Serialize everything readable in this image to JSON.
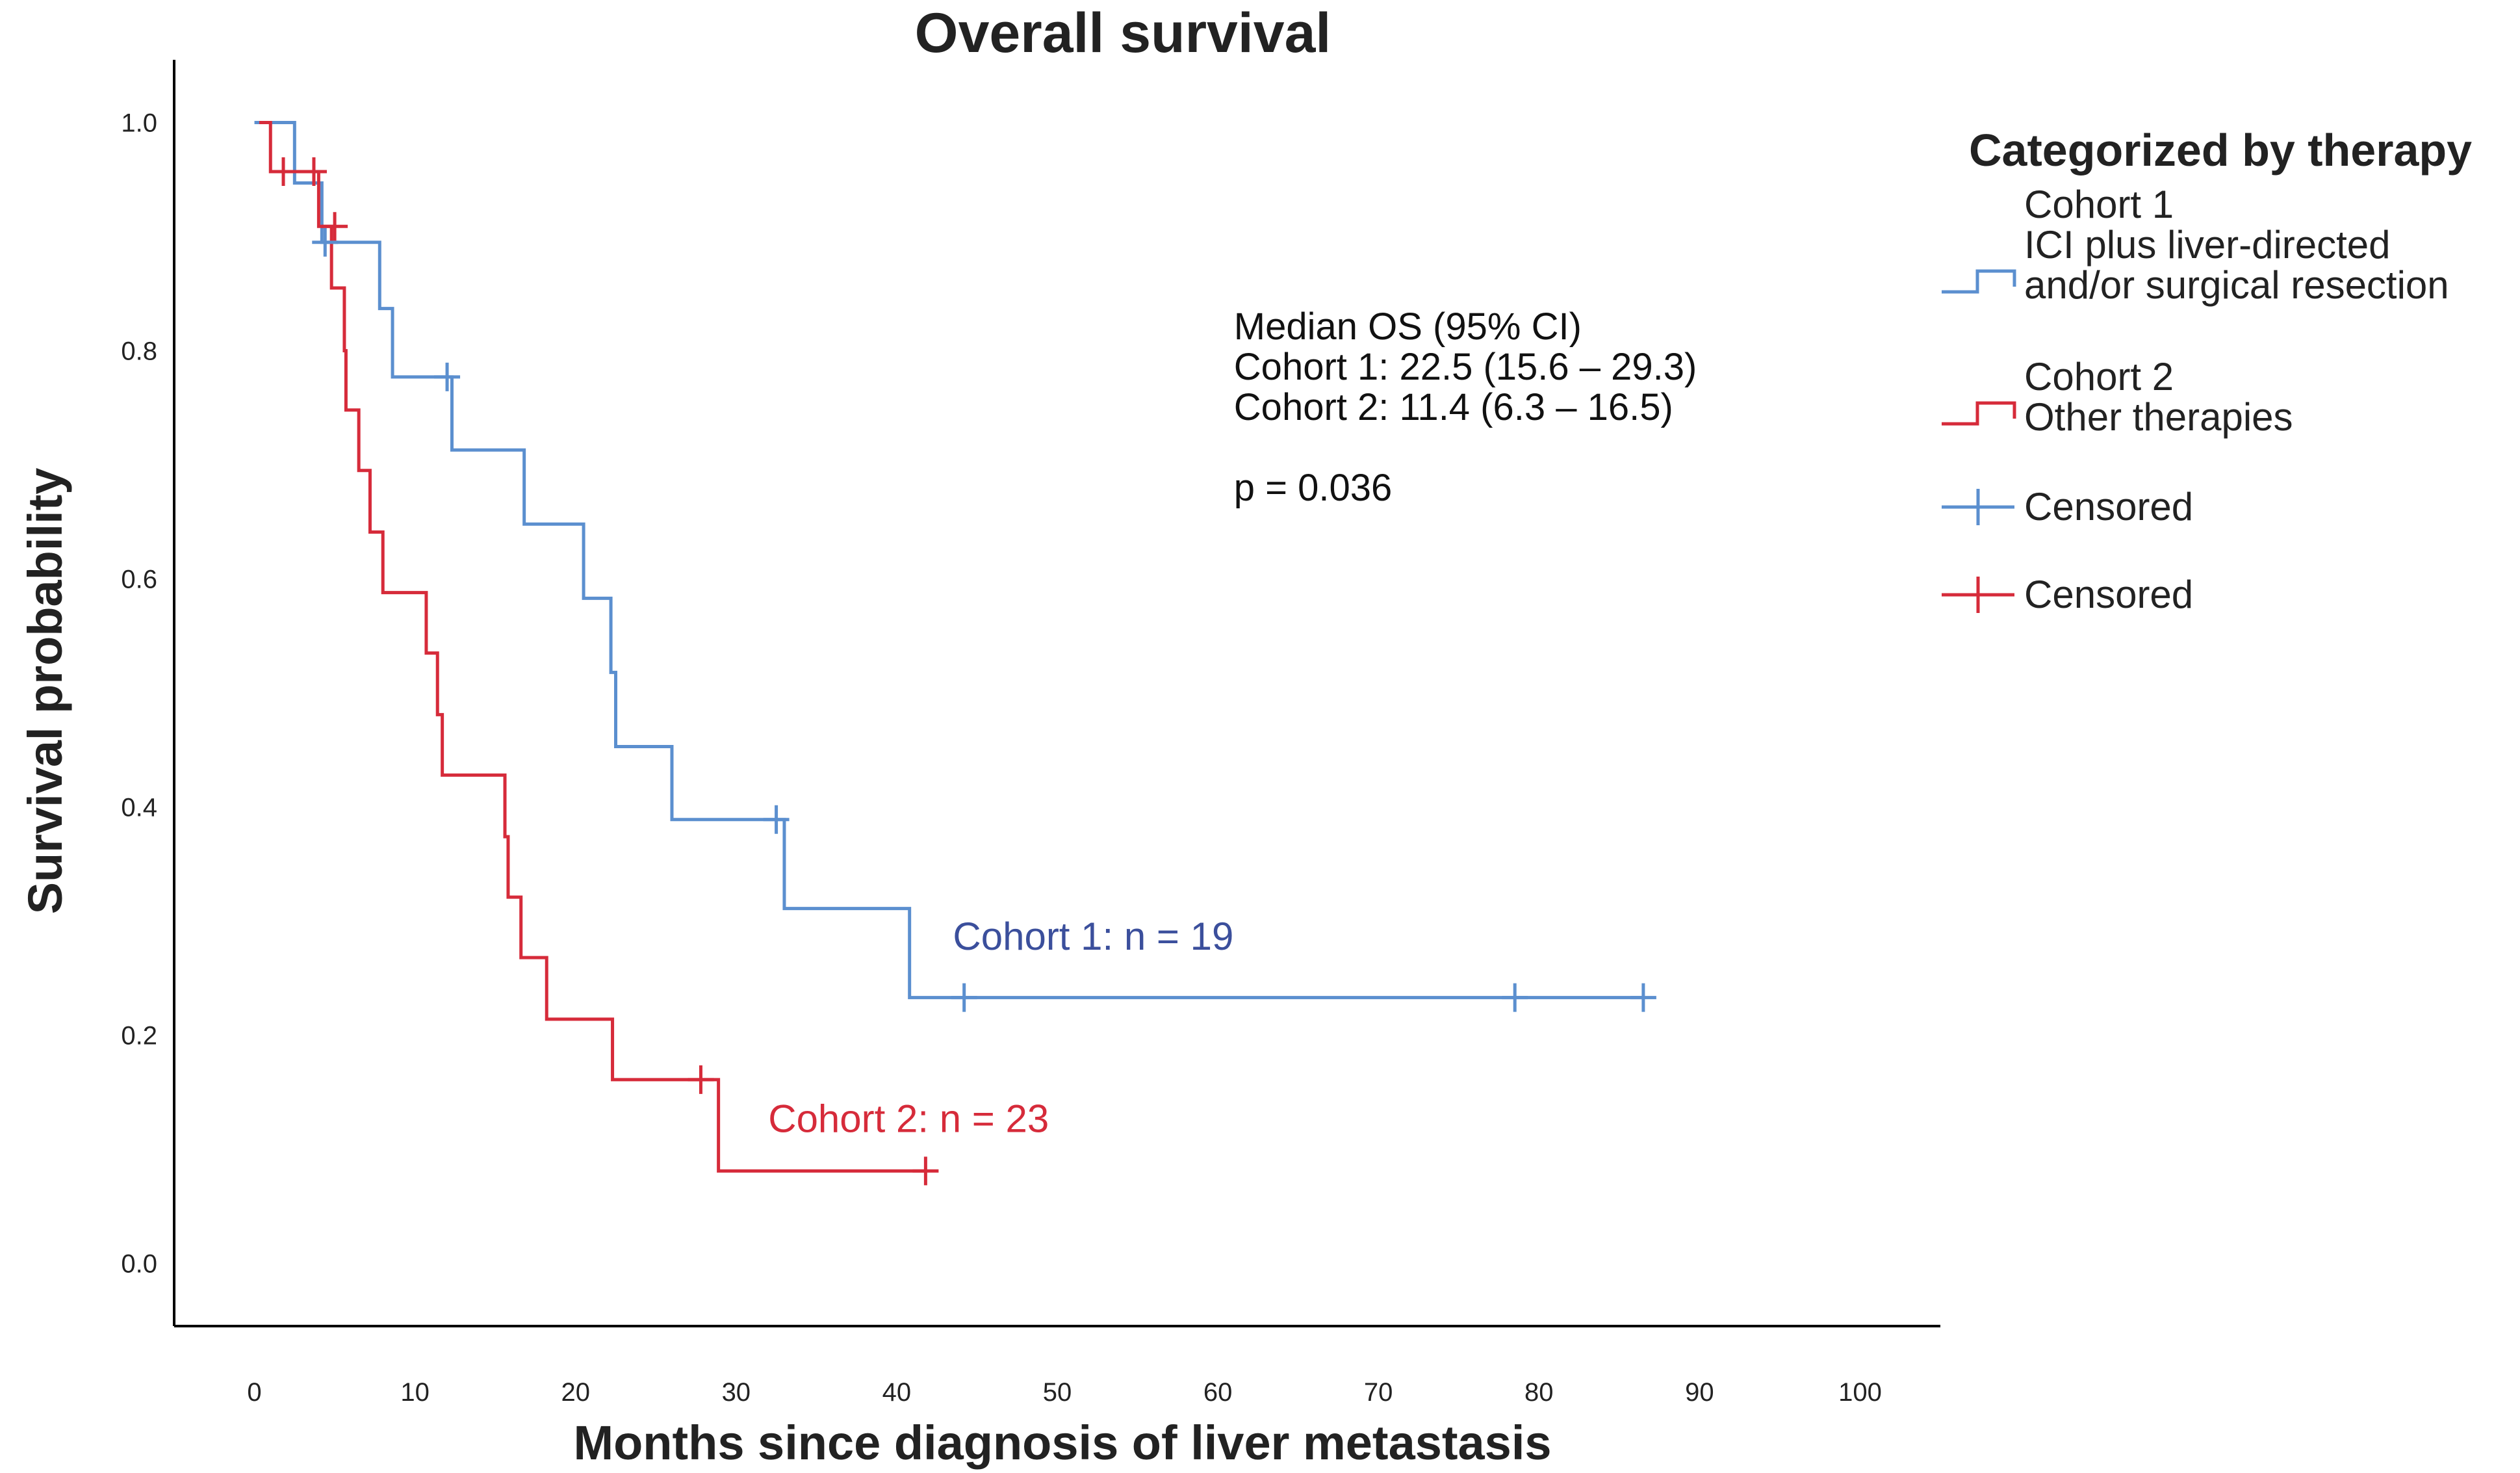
{
  "chart_data": {
    "type": "line",
    "subtype": "kaplan-meier",
    "title": "Overall survival",
    "xlabel": "Months since diagnosis of liver metastasis",
    "ylabel": "Survival probability",
    "xlim": [
      -5,
      105
    ],
    "ylim": [
      -0.055,
      1.055
    ],
    "xticks": [
      0,
      10,
      20,
      30,
      40,
      50,
      60,
      70,
      80,
      90,
      100
    ],
    "xtick_labels": [
      "0",
      "10",
      "20",
      "30",
      "40",
      "50",
      "60",
      "70",
      "80",
      "90",
      "100"
    ],
    "yticks": [
      0.0,
      0.2,
      0.4,
      0.6,
      0.8,
      1.0
    ],
    "ytick_labels": [
      "0.0",
      "0.2",
      "0.4",
      "0.6",
      "0.8",
      "1.0"
    ],
    "legend": {
      "title": "Categorized by therapy",
      "position": "right",
      "entries": [
        {
          "series": 0,
          "kind": "step",
          "lines": [
            "Cohort 1",
            "ICI plus liver-directed",
            "and/or surgical resection"
          ]
        },
        {
          "series": 1,
          "kind": "step",
          "lines": [
            "Cohort 2",
            "Other therapies"
          ]
        },
        {
          "series": 0,
          "kind": "censor",
          "lines": [
            "Censored"
          ]
        },
        {
          "series": 1,
          "kind": "censor",
          "lines": [
            "Censored"
          ]
        }
      ]
    },
    "annotation": {
      "lines": [
        "Median OS (95% CI)",
        "Cohort 1: 22.5 (15.6 – 29.3)",
        "Cohort 2: 11.4 (6.3 – 16.5)",
        "",
        "p = 0.036"
      ],
      "anchor": [
        61,
        0.81
      ]
    },
    "series": [
      {
        "name": "Cohort 1",
        "color": "#5b8fcf",
        "n_label": "Cohort 1: n = 19",
        "n_label_color": "#3b4f9c",
        "n_label_anchor": [
          43.5,
          0.275
        ],
        "steps": [
          [
            0,
            1.0
          ],
          [
            2.5,
            0.947
          ],
          [
            4.2,
            0.895
          ],
          [
            7.8,
            0.837
          ],
          [
            8.6,
            0.777
          ],
          [
            12.3,
            0.713
          ],
          [
            16.8,
            0.648
          ],
          [
            20.5,
            0.583
          ],
          [
            22.2,
            0.518
          ],
          [
            22.5,
            0.453
          ],
          [
            26.0,
            0.389
          ],
          [
            33.0,
            0.311
          ],
          [
            40.8,
            0.233
          ],
          [
            86.5,
            0.233
          ]
        ],
        "censored": [
          [
            4.4,
            0.895
          ],
          [
            12.0,
            0.777
          ],
          [
            32.5,
            0.389
          ],
          [
            44.2,
            0.233
          ],
          [
            78.5,
            0.233
          ],
          [
            86.5,
            0.233
          ]
        ]
      },
      {
        "name": "Cohort 2",
        "color": "#d62b3a",
        "n_label": "Cohort 2: n = 23",
        "n_label_color": "#d62b3a",
        "n_label_anchor": [
          32.0,
          0.115
        ],
        "steps": [
          [
            0.3,
            1.0
          ],
          [
            1.0,
            0.957
          ],
          [
            4.0,
            0.909
          ],
          [
            4.8,
            0.855
          ],
          [
            5.6,
            0.8
          ],
          [
            5.7,
            0.748
          ],
          [
            6.5,
            0.695
          ],
          [
            7.2,
            0.641
          ],
          [
            8.0,
            0.588
          ],
          [
            10.7,
            0.535
          ],
          [
            11.4,
            0.481
          ],
          [
            11.7,
            0.428
          ],
          [
            15.6,
            0.374
          ],
          [
            15.8,
            0.321
          ],
          [
            16.6,
            0.268
          ],
          [
            18.2,
            0.214
          ],
          [
            22.3,
            0.161
          ],
          [
            28.9,
            0.081
          ],
          [
            41.8,
            0.081
          ]
        ],
        "censored": [
          [
            1.8,
            0.957
          ],
          [
            3.7,
            0.957
          ],
          [
            5.0,
            0.909
          ],
          [
            27.8,
            0.161
          ],
          [
            41.8,
            0.081
          ]
        ]
      }
    ]
  }
}
